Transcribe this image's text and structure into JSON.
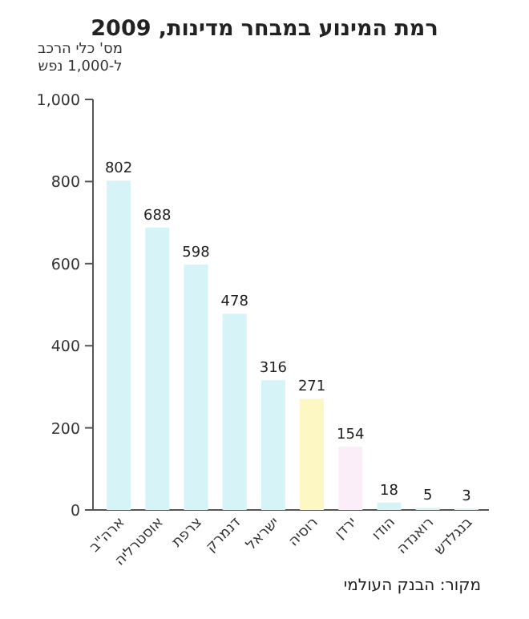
{
  "chart_data": {
    "type": "bar",
    "title": "רמת המינוע במבחר מדינות, 2009",
    "ylabel": "מס' כלי הרכב\nל-1,000 נפש",
    "categories": [
      "ארה\"ב",
      "אוסטרליה",
      "צרפת",
      "דנמרק",
      "ישראל",
      "רוסיה",
      "ירדן",
      "הודו",
      "רואנדה",
      "בנגלדש"
    ],
    "values": [
      802,
      688,
      598,
      478,
      316,
      271,
      154,
      18,
      5,
      3
    ],
    "colors": [
      "#d6f3f8",
      "#d6f3f8",
      "#d6f3f8",
      "#d6f3f8",
      "#d6f3f8",
      "#fdf7c4",
      "#fbeef8",
      "#d6f3f8",
      "#d6f3f8",
      "#d6f3f8"
    ],
    "ylim": [
      0,
      1000
    ],
    "yticks": [
      0,
      200,
      400,
      600,
      800,
      {
        "value": 1000,
        "label": "1,000"
      }
    ],
    "data_labels": true,
    "grid": false,
    "annotations": [
      "מקור: הבנק העולמי"
    ]
  }
}
